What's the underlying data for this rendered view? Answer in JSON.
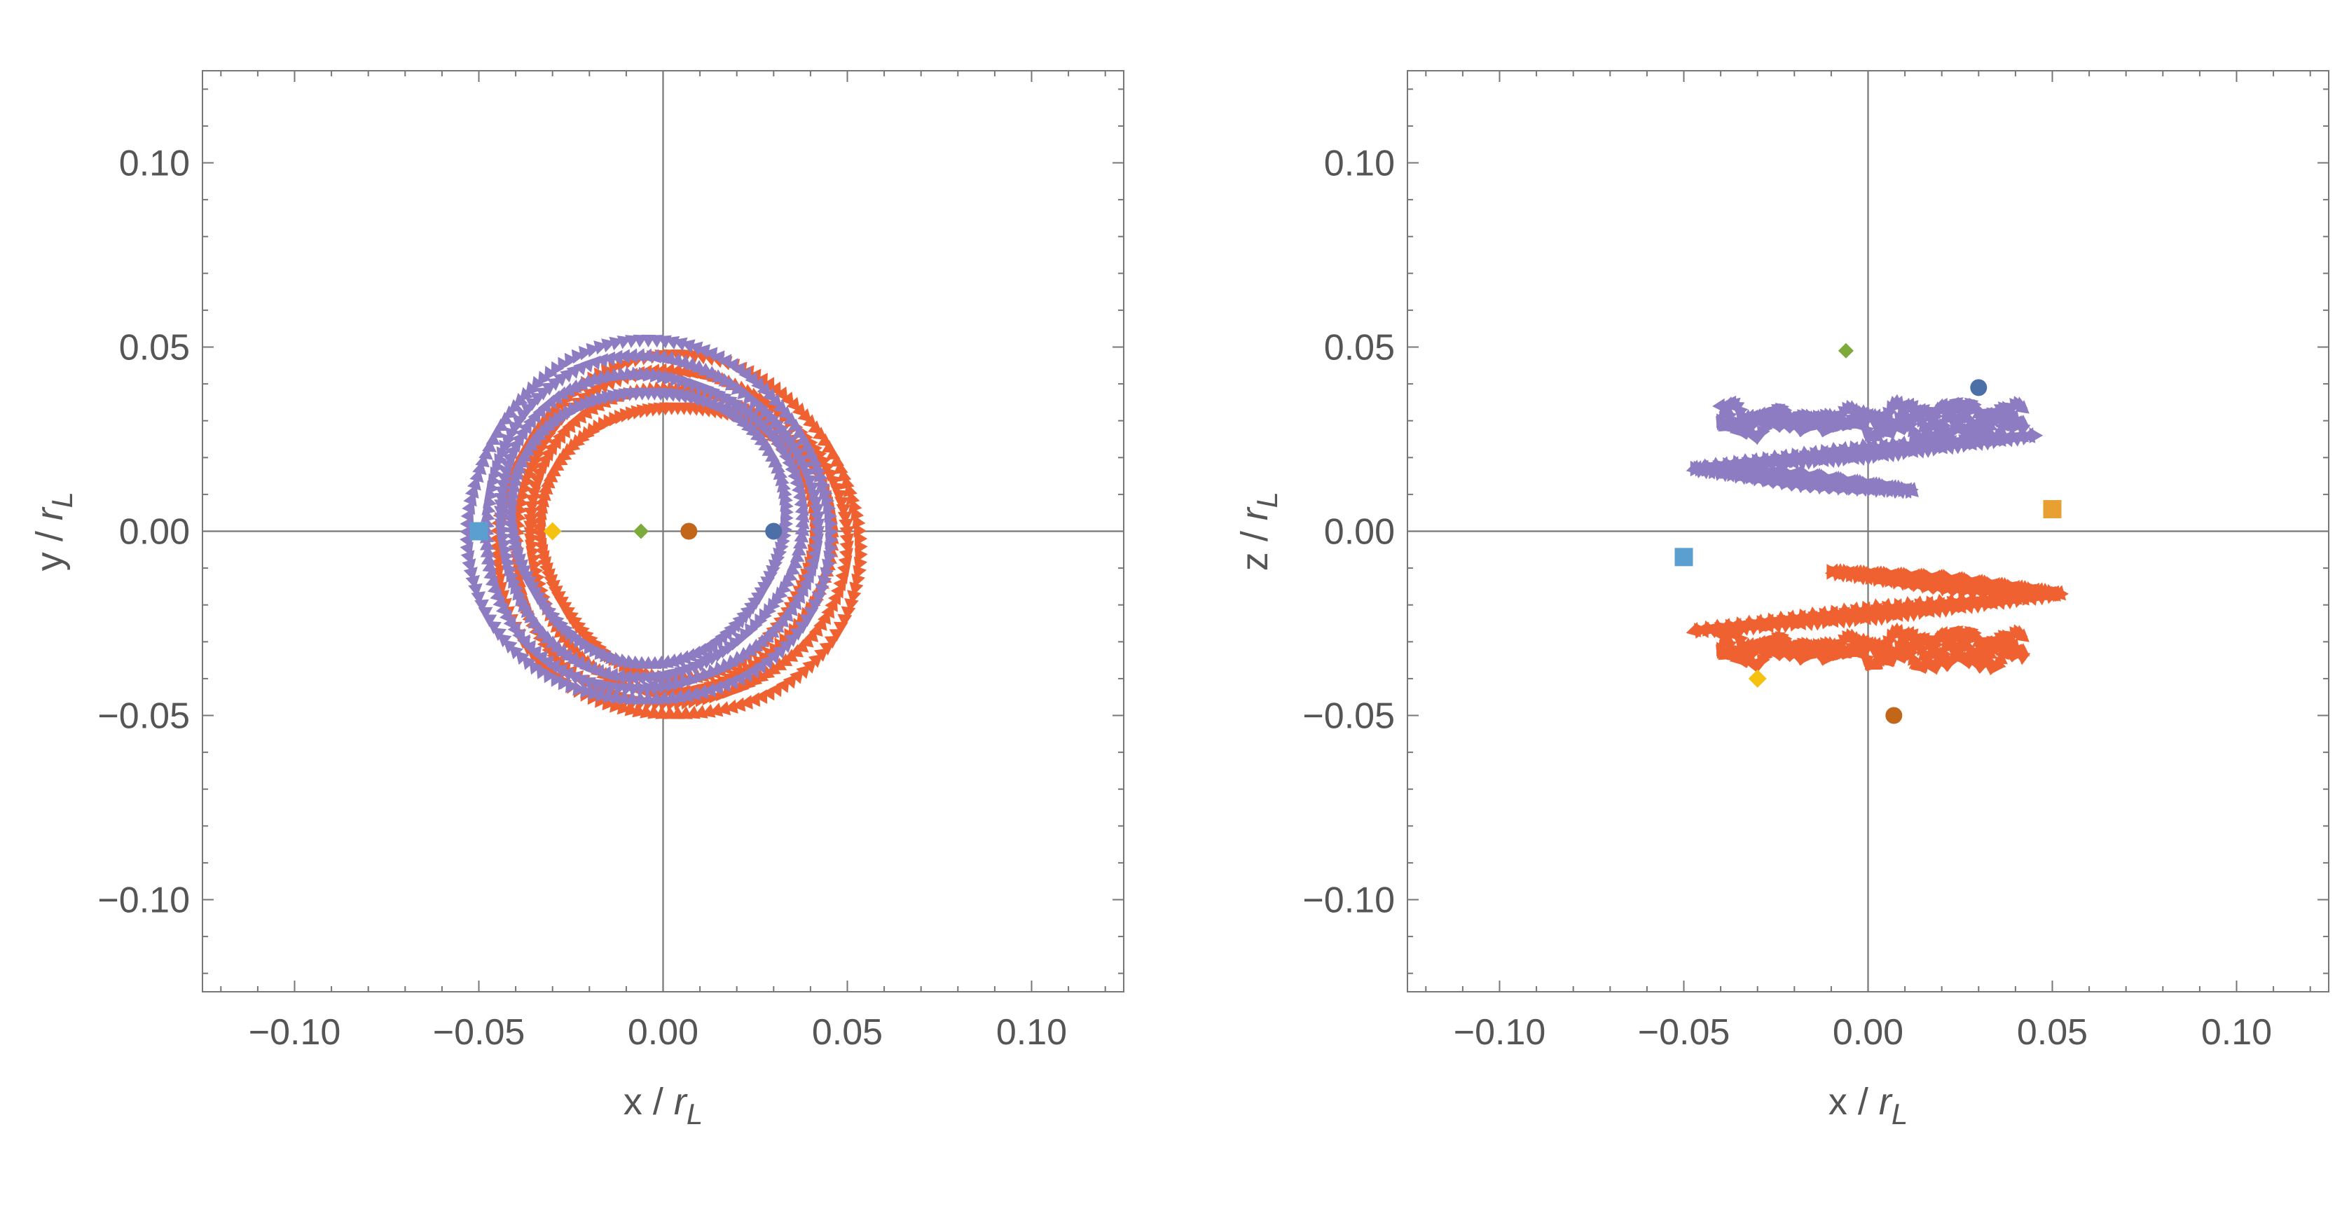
{
  "charts": [
    {
      "type": "scatter",
      "xlabel": "x / r",
      "xlabel_sub": "L",
      "ylabel": "y / r",
      "ylabel_sub": "L",
      "xlim": [
        -0.125,
        0.125
      ],
      "ylim": [
        -0.125,
        0.125
      ],
      "ticks": [
        -0.1,
        -0.05,
        0.0,
        0.05,
        0.1
      ],
      "tick_labels": [
        "−0.10",
        "−0.05",
        "0.00",
        "0.05",
        "0.10"
      ],
      "grid": false,
      "points": [
        {
          "x": -0.05,
          "y": 0.0,
          "shape": "square",
          "color": "#5b9fd0"
        },
        {
          "x": -0.03,
          "y": 0.0,
          "shape": "diamond",
          "color": "#f5c211"
        },
        {
          "x": -0.006,
          "y": 0.0,
          "shape": "diamond",
          "color": "#7cab3c"
        },
        {
          "x": 0.007,
          "y": 0.0,
          "shape": "circle",
          "color": "#c2661a"
        },
        {
          "x": 0.03,
          "y": 0.0,
          "shape": "circle",
          "color": "#4d6fa8"
        }
      ],
      "orbits": [
        {
          "kind": "ring",
          "color": "#ef6130",
          "cx": 0.004,
          "cy": -0.002,
          "radii": [
            0.037,
            0.041,
            0.045,
            0.049
          ]
        },
        {
          "kind": "ring",
          "color": "#8e7cc3",
          "cx": -0.004,
          "cy": 0.002,
          "radii": [
            0.037,
            0.041,
            0.045,
            0.049
          ]
        }
      ]
    },
    {
      "type": "scatter",
      "xlabel": "x / r",
      "xlabel_sub": "L",
      "ylabel": "z / r",
      "ylabel_sub": "L",
      "xlim": [
        -0.125,
        0.125
      ],
      "ylim": [
        -0.125,
        0.125
      ],
      "ticks": [
        -0.1,
        -0.05,
        0.0,
        0.05,
        0.1
      ],
      "tick_labels": [
        "−0.10",
        "−0.05",
        "0.00",
        "0.05",
        "0.10"
      ],
      "grid": false,
      "points": [
        {
          "x": -0.006,
          "y": 0.049,
          "shape": "diamond",
          "color": "#7cab3c"
        },
        {
          "x": 0.03,
          "y": 0.039,
          "shape": "circle",
          "color": "#4d6fa8"
        },
        {
          "x": 0.05,
          "y": 0.006,
          "shape": "square",
          "color": "#e8a033"
        },
        {
          "x": -0.05,
          "y": -0.007,
          "shape": "square",
          "color": "#5b9fd0"
        },
        {
          "x": -0.03,
          "y": -0.04,
          "shape": "diamond",
          "color": "#f5c211"
        },
        {
          "x": 0.007,
          "y": -0.05,
          "shape": "circle",
          "color": "#c2661a"
        }
      ],
      "orbits": [
        {
          "kind": "band",
          "color": "#8e7cc3",
          "path": [
            [
              0.045,
              0.026
            ],
            [
              -0.047,
              0.017
            ],
            [
              0.012,
              0.011
            ]
          ],
          "wiggle": {
            "x1": -0.04,
            "x2": 0.042,
            "yc": 0.03,
            "amp": 0.005
          }
        },
        {
          "kind": "band",
          "color": "#ef6130",
          "path": [
            [
              -0.01,
              -0.011
            ],
            [
              0.052,
              -0.017
            ],
            [
              -0.047,
              -0.027
            ]
          ],
          "wiggle": {
            "x1": -0.04,
            "x2": 0.042,
            "yc": -0.032,
            "amp": 0.005
          }
        }
      ]
    }
  ]
}
